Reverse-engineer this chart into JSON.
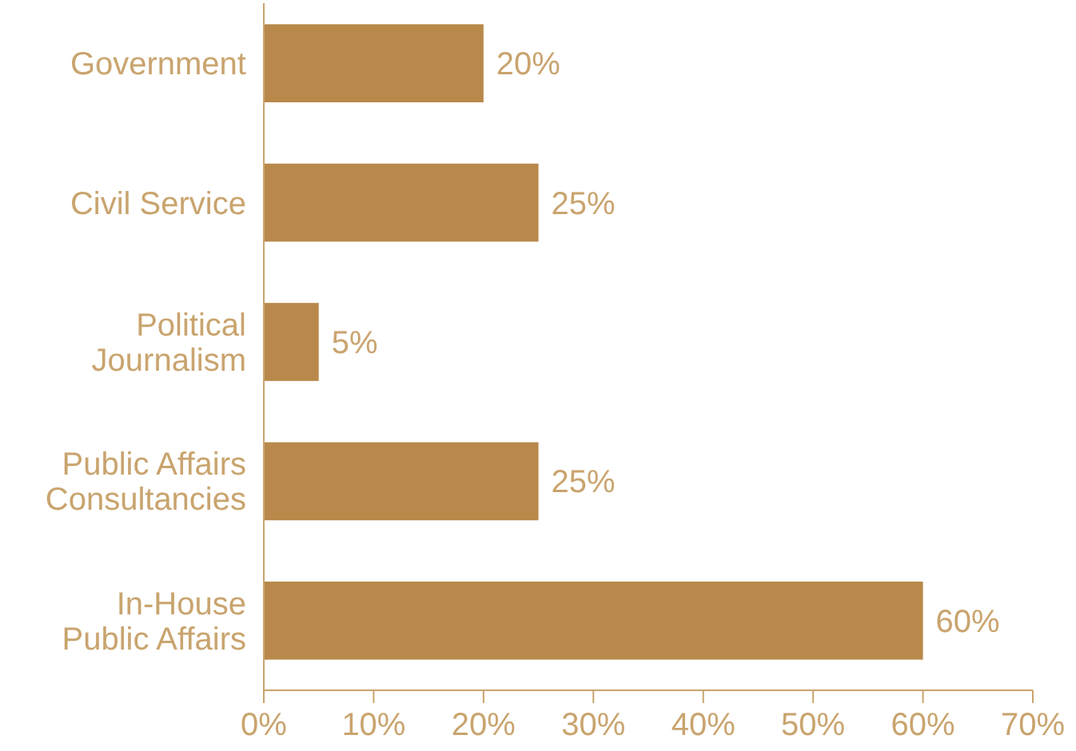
{
  "chart_data": {
    "type": "bar",
    "orientation": "horizontal",
    "categories": [
      "Government",
      "Civil Service",
      "Political Journalism",
      "Public Affairs Consultancies",
      "In-House Public Affairs"
    ],
    "values": [
      20,
      25,
      5,
      25,
      60
    ],
    "value_labels": [
      "20%",
      "25%",
      "5%",
      "25%",
      "60%"
    ],
    "color": "#b8894a",
    "xlim": [
      0,
      70
    ],
    "xticks": [
      {
        "value": 0,
        "label": "0%"
      },
      {
        "value": 10,
        "label": "10%"
      },
      {
        "value": 20,
        "label": "20%"
      },
      {
        "value": 30,
        "label": "30%"
      },
      {
        "value": 40,
        "label": "40%"
      },
      {
        "value": 50,
        "label": "50%"
      },
      {
        "value": 60,
        "label": "60%"
      },
      {
        "value": 70,
        "label": "70%"
      }
    ],
    "grid": false
  }
}
